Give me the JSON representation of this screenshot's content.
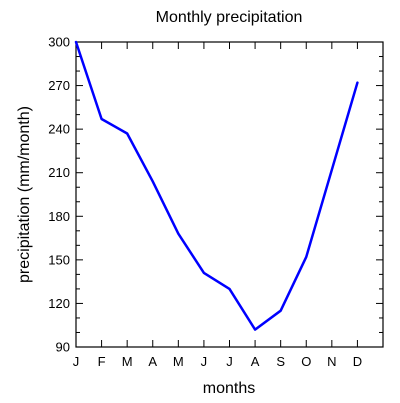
{
  "chart_data": {
    "type": "line",
    "title": "Monthly precipitation",
    "xlabel": "months",
    "ylabel": "precipitation (mm/month)",
    "categories": [
      "J",
      "F",
      "M",
      "A",
      "M",
      "J",
      "J",
      "A",
      "S",
      "O",
      "N",
      "D"
    ],
    "series": [
      {
        "values": [
          300,
          247,
          237,
          204,
          168,
          141,
          130,
          102,
          115,
          152,
          212,
          272
        ],
        "color": "#0000ff"
      }
    ],
    "ylim": [
      90,
      300
    ],
    "yticks": [
      "90",
      "120",
      "150",
      "180",
      "210",
      "240",
      "270",
      "300"
    ],
    "grid": false,
    "legend": "none"
  }
}
